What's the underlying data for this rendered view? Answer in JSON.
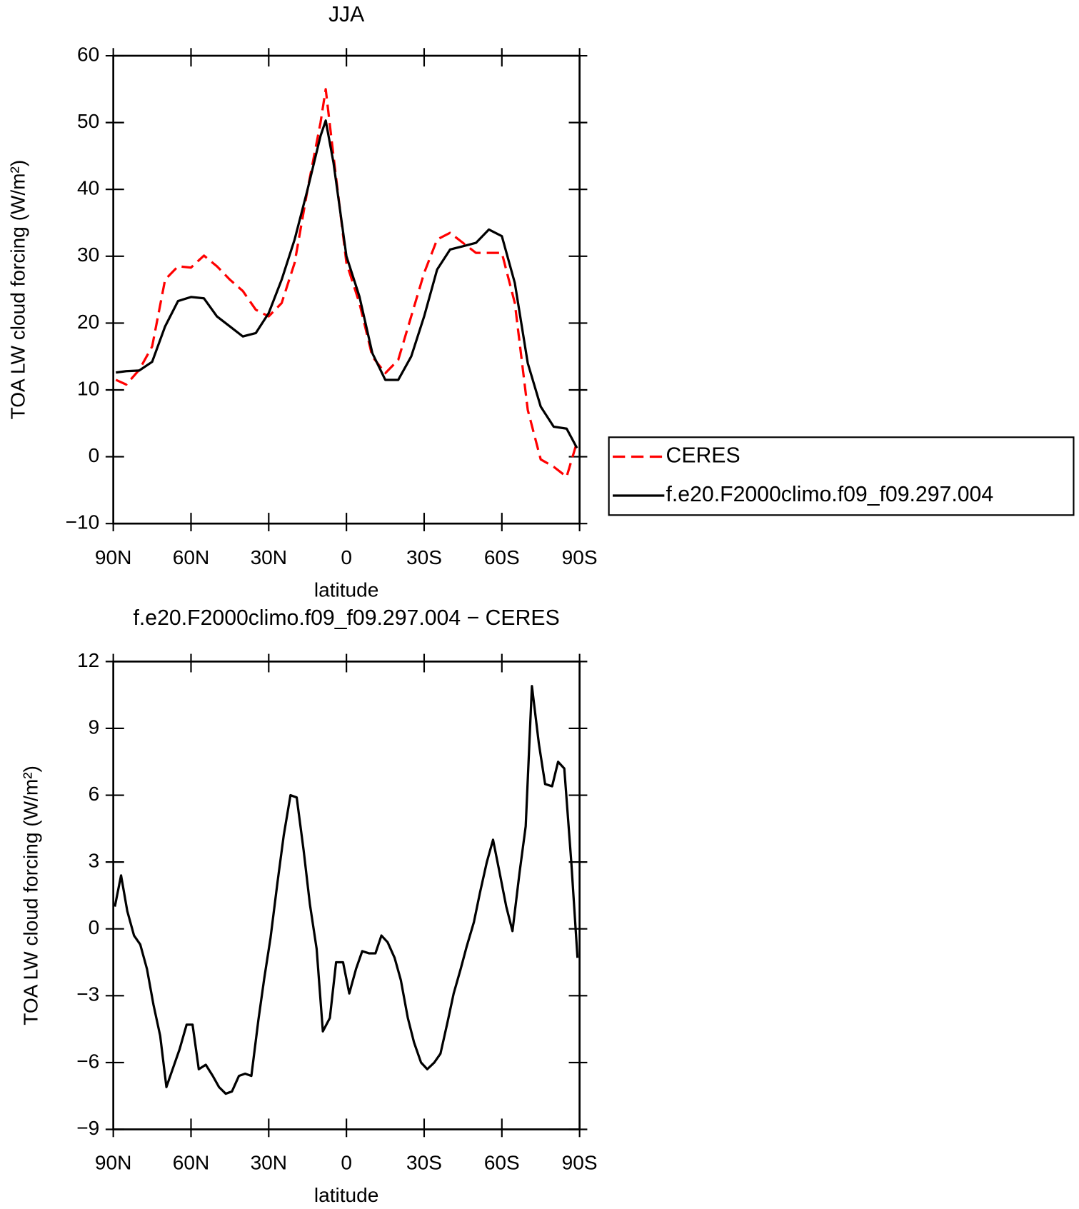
{
  "chart_data": [
    {
      "type": "line",
      "title": "JJA",
      "xlabel": "latitude",
      "ylabel": "TOA LW cloud forcing (W/m²)",
      "x": [
        89,
        85,
        80,
        75,
        70,
        65,
        60,
        55,
        50,
        45,
        40,
        35,
        30,
        25,
        20,
        15,
        10,
        8,
        5,
        0,
        -5,
        -10,
        -15,
        -20,
        -25,
        -30,
        -35,
        -40,
        -45,
        -50,
        -55,
        -60,
        -65,
        -70,
        -75,
        -80,
        -85,
        -89
      ],
      "series": [
        {
          "name": "CERES",
          "color": "#ff0000",
          "line_style": "dashed",
          "values": [
            11.5,
            10.8,
            13,
            16.5,
            26.5,
            28.5,
            28.3,
            30.1,
            28.5,
            26.5,
            24.8,
            22,
            21,
            23,
            29,
            40,
            50,
            55,
            45,
            29,
            23,
            15,
            12.5,
            14.5,
            21,
            27.5,
            32.5,
            33.5,
            32,
            30.5,
            30.5,
            30.5,
            23,
            7,
            -0.4,
            -1.5,
            -3,
            2.2
          ]
        },
        {
          "name": "f.e20.F2000climo.f09_f09.297.004",
          "color": "#000000",
          "line_style": "solid",
          "values": [
            12.6,
            12.8,
            12.9,
            14.2,
            19.5,
            23.3,
            23.9,
            23.7,
            21,
            19.5,
            18,
            18.5,
            21.5,
            26.5,
            32.5,
            40,
            48,
            50.3,
            44,
            30,
            24,
            15.5,
            11.5,
            11.5,
            15,
            21,
            28,
            31,
            31.5,
            32,
            34,
            33,
            26,
            14,
            7.5,
            4.5,
            4.2,
            1.3
          ]
        }
      ],
      "xlim": [
        90,
        -90
      ],
      "xticks": [
        {
          "value": 90,
          "label": "90N"
        },
        {
          "value": 60,
          "label": "60N"
        },
        {
          "value": 30,
          "label": "30N"
        },
        0,
        {
          "value": -30,
          "label": "30S"
        },
        {
          "value": -60,
          "label": "60S"
        },
        {
          "value": -90,
          "label": "90S"
        }
      ],
      "ylim": [
        -10,
        60
      ],
      "yticks": [
        {
          "value": -10,
          "label": "−10"
        },
        0,
        10,
        20,
        30,
        40,
        50,
        60
      ],
      "legend": "right"
    },
    {
      "type": "line",
      "title": "f.e20.F2000climo.f09_f09.297.004 − CERES",
      "xlabel": "latitude",
      "ylabel": "TOA LW cloud forcing (W/m²)",
      "x": [
        89.4,
        87,
        84.6,
        82,
        79.6,
        77,
        74.5,
        71.9,
        69.5,
        66.8,
        64.4,
        61.7,
        59.4,
        57,
        54.3,
        51.6,
        49.2,
        46.6,
        44.2,
        41.5,
        39.1,
        36.7,
        34,
        31.7,
        29.3,
        26.6,
        24.2,
        21.6,
        19.2,
        16.5,
        14.1,
        11.5,
        9.1,
        6.4,
        4,
        1.3,
        -1.1,
        -3.7,
        -6.1,
        -8.8,
        -11.2,
        -13.5,
        -15.9,
        -18.6,
        -21,
        -23.7,
        -26.1,
        -28.8,
        -31.2,
        -33.9,
        -36.3,
        -39,
        -41.4,
        -44.1,
        -46.4,
        -49.2,
        -51.5,
        -54.2,
        -56.6,
        -59,
        -61.7,
        -64.1,
        -66.8,
        -69.2,
        -71.6,
        -74.3,
        -76.7,
        -79.4,
        -81.7,
        -84.1,
        -86.8,
        -89.2
      ],
      "values": [
        1.0,
        2.4,
        0.8,
        -0.3,
        -0.7,
        -1.8,
        -3.4,
        -4.8,
        -7.1,
        -6.2,
        -5.4,
        -4.3,
        -4.3,
        -6.3,
        -6.1,
        -6.6,
        -7.1,
        -7.4,
        -7.3,
        -6.6,
        -6.5,
        -6.6,
        -4.1,
        -2.2,
        -0.4,
        2.1,
        4.2,
        6.0,
        5.9,
        3.5,
        1.1,
        -0.9,
        -4.6,
        -4.0,
        -1.5,
        -1.5,
        -2.9,
        -1.8,
        -1.0,
        -1.1,
        -1.1,
        -0.3,
        -0.6,
        -1.3,
        -2.3,
        -4.0,
        -5.1,
        -6.0,
        -6.3,
        -6.0,
        -5.6,
        -4.2,
        -2.9,
        -1.8,
        -0.8,
        0.3,
        1.6,
        3.0,
        4.0,
        2.6,
        1.0,
        -0.1,
        2.5,
        4.6,
        10.9,
        8.3,
        6.5,
        6.4,
        7.5,
        7.2,
        3.0,
        -1.3
      ],
      "color": "#000000",
      "xlim": [
        90,
        -90
      ],
      "xticks": [
        {
          "value": 90,
          "label": "90N"
        },
        {
          "value": 60,
          "label": "60N"
        },
        {
          "value": 30,
          "label": "30N"
        },
        0,
        {
          "value": -30,
          "label": "30S"
        },
        {
          "value": -60,
          "label": "60S"
        },
        {
          "value": -90,
          "label": "90S"
        }
      ],
      "ylim": [
        -9,
        12
      ],
      "yticks": [
        {
          "value": -9,
          "label": "−9"
        },
        {
          "value": -6,
          "label": "−6"
        },
        {
          "value": -3,
          "label": "−3"
        },
        0,
        3,
        6,
        9,
        12
      ]
    }
  ]
}
